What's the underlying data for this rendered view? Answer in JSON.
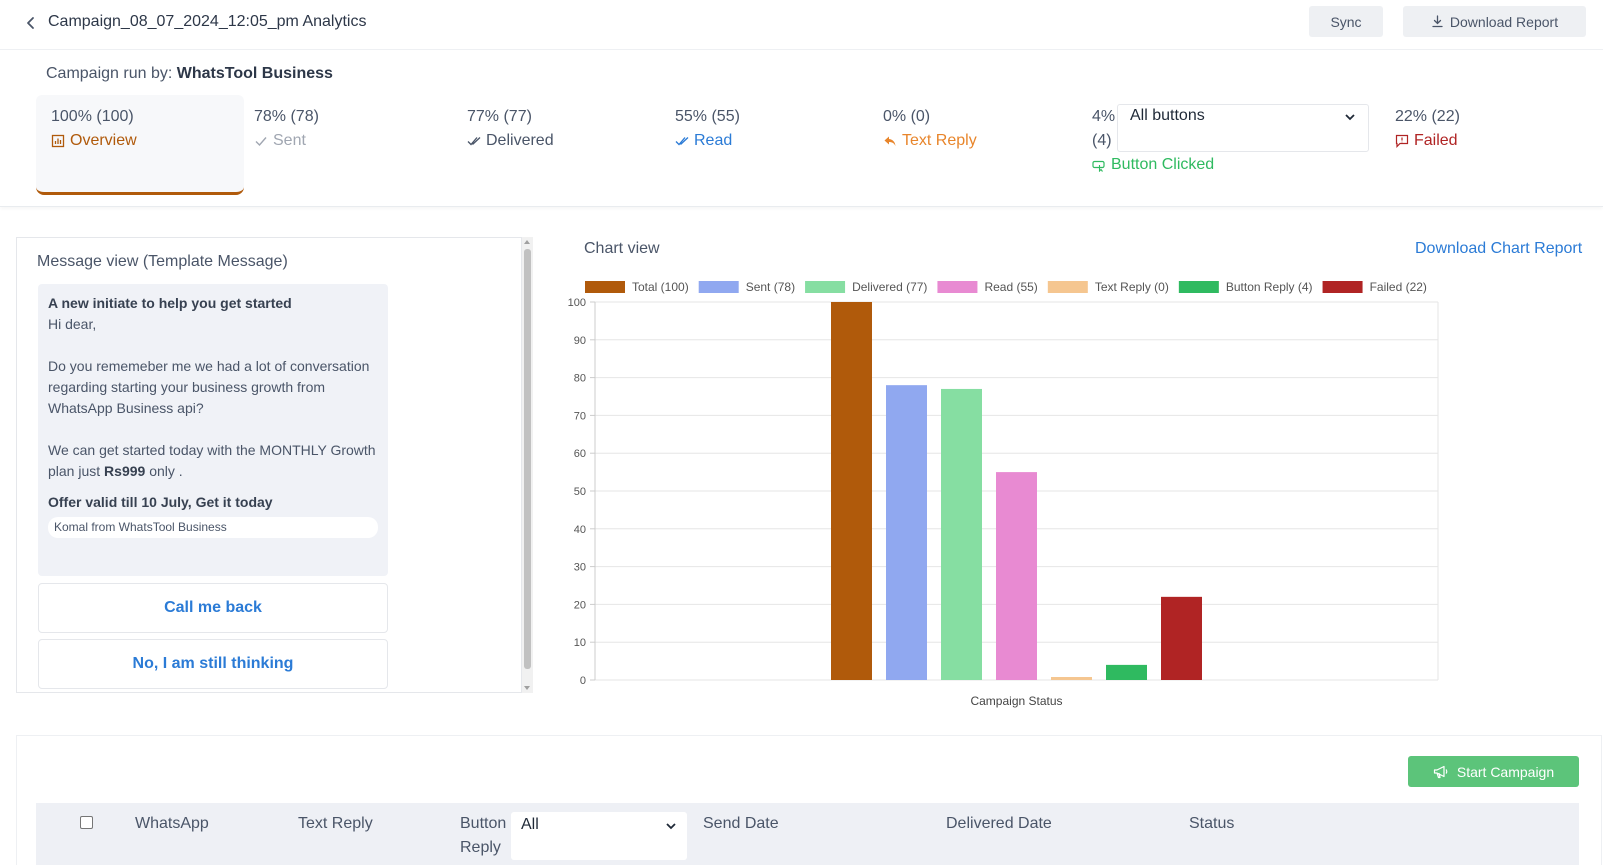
{
  "header": {
    "title": "Campaign_08_07_2024_12:05_pm Analytics",
    "sync_label": "Sync",
    "download_label": "Download Report"
  },
  "run_by": {
    "prefix": "Campaign run by:",
    "name": "WhatsTool Business"
  },
  "stats": {
    "overview": {
      "value": "100% (100)",
      "label": "Overview"
    },
    "sent": {
      "value": "78% (78)",
      "label": "Sent"
    },
    "delivered": {
      "value": "77% (77)",
      "label": "Delivered"
    },
    "read": {
      "value": "55% (55)",
      "label": "Read"
    },
    "text_reply": {
      "value": "0% (0)",
      "label": "Text Reply"
    },
    "button": {
      "value_pct": "4%",
      "value_count": "(4)",
      "label": "Button Clicked",
      "select_value": "All buttons"
    },
    "failed": {
      "value": "22% (22)",
      "label": "Failed"
    }
  },
  "message_view": {
    "title": "Message view (Template Message)",
    "header": "A new initiate to help you get started",
    "greeting": "Hi dear,",
    "para1": "Do you rememeber me we had a lot of conversation regarding starting your business growth from WhatsApp Business api?",
    "para2_pre": "We can get started today with the MONTHLY Growth plan just",
    "para2_bold": "Rs999",
    "para2_post": "only .",
    "offer": "Offer valid till 10 July, Get it today",
    "footer": "Komal from WhatsTool Business",
    "buttons": [
      "Call me back",
      "No, I am still thinking"
    ]
  },
  "chart_view": {
    "title": "Chart view",
    "download_link": "Download Chart Report"
  },
  "chart_data": {
    "type": "bar",
    "xlabel": "Campaign Status",
    "ylabel": "",
    "ylim": [
      0,
      100
    ],
    "yticks": [
      0,
      10,
      20,
      30,
      40,
      50,
      60,
      70,
      80,
      90,
      100
    ],
    "grid": true,
    "legend_position": "top",
    "series": [
      {
        "name": "Total (100)",
        "value": 100,
        "color": "#b05a0b"
      },
      {
        "name": "Sent (78)",
        "value": 78,
        "color": "#90a8f0"
      },
      {
        "name": "Delivered (77)",
        "value": 77,
        "color": "#86dea2"
      },
      {
        "name": "Read (55)",
        "value": 55,
        "color": "#e88ad2"
      },
      {
        "name": "Text Reply (0)",
        "value": 0,
        "color": "#f5c690"
      },
      {
        "name": "Button Reply (4)",
        "value": 4,
        "color": "#2fba60"
      },
      {
        "name": "Failed (22)",
        "value": 22,
        "color": "#b02424"
      }
    ]
  },
  "table": {
    "start_campaign_label": "Start Campaign",
    "columns": {
      "whatsapp": "WhatsApp",
      "text_reply": "Text Reply",
      "button_reply_1": "Button",
      "button_reply_2": "Reply",
      "button_filter": "All",
      "send_date": "Send Date",
      "delivered_date": "Delivered Date",
      "status": "Status"
    }
  },
  "colors": {
    "accent_blue": "#2b7bd6",
    "overview_brown": "#b05a0b",
    "text_reply_orange": "#e8852b",
    "button_green": "#2fba60",
    "failed_red": "#b02424",
    "start_green": "#5cc47a"
  }
}
